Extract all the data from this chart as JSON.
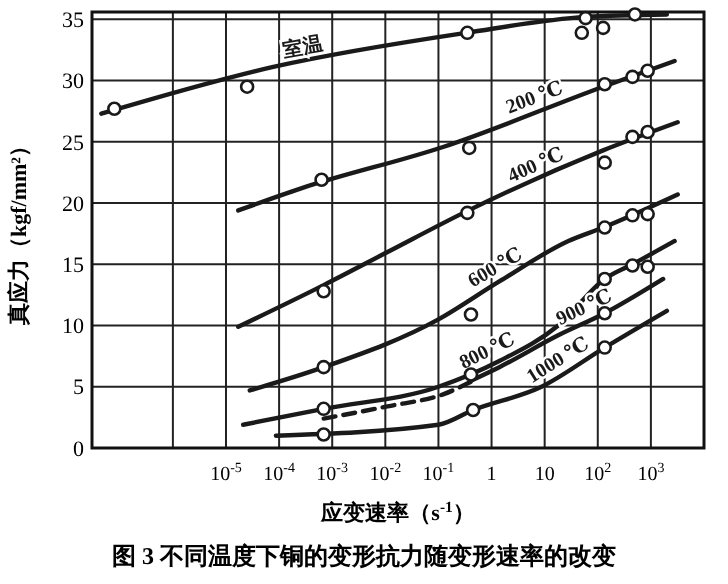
{
  "chart_data": {
    "type": "line",
    "xlabel": "应变速率（s$^{-1}$）",
    "ylabel": "真应力（kgf/mm²）",
    "annotations": [
      "图 3  不同温度下铜的变形抗力随变形速率的改变"
    ],
    "log": "x",
    "grid": true,
    "marker": "none",
    "xlim": [
      3e-08,
      10000
    ],
    "ylim": [
      0,
      35.6
    ],
    "xticks": [
      {
        "value": 1e-06,
        "label": null
      },
      {
        "value": 1e-05,
        "label": "10$^{-5}$"
      },
      {
        "value": 0.0001,
        "label": "10$^{-4}$"
      },
      {
        "value": 0.001,
        "label": "10$^{-3}$"
      },
      {
        "value": 0.01,
        "label": "10$^{-2}$"
      },
      {
        "value": 0.1,
        "label": "10$^{-1}$"
      },
      1,
      10,
      {
        "value": 100,
        "label": "10$^{2}$"
      },
      {
        "value": 1000,
        "label": "10$^{3}$"
      }
    ],
    "yticks": [
      0,
      5,
      10,
      15,
      20,
      25,
      30,
      35
    ],
    "series": [
      {
        "name": "室温",
        "color": "#1a1a1a",
        "x": [
          4.5e-08,
          7.4e-05,
          0.33,
          59,
          2000
        ],
        "values": [
          27.3,
          31.1,
          33.9,
          35.2,
          35.4
        ]
      },
      {
        "name": "200 ℃",
        "color": "#1a1a1a",
        "x": [
          1.7e-05,
          0.00026,
          0.126,
          126,
          2800
        ],
        "values": [
          19.4,
          21.2,
          24.6,
          29.5,
          31.6
        ]
      },
      {
        "name": "400 ℃",
        "color": "#1a1a1a",
        "x": [
          1.7e-05,
          0.00069,
          0.011,
          0.33,
          126,
          3200
        ],
        "values": [
          9.9,
          13.3,
          16.0,
          19.3,
          24.3,
          26.6
        ]
      },
      {
        "name": "600 ℃",
        "color": "#1a1a1a",
        "x": [
          2.8e-05,
          0.00069,
          0.1,
          1.4,
          28,
          126,
          3200
        ],
        "values": [
          4.7,
          6.6,
          10.5,
          13.6,
          16.9,
          18.0,
          20.7
        ]
      },
      {
        "name": "800 ℃",
        "color": "#1a1a1a",
        "x": [
          2.1e-05,
          0.00069,
          0.1,
          1.4,
          18,
          135,
          450,
          2800
        ],
        "values": [
          1.9,
          3.2,
          5.0,
          7.1,
          10.0,
          13.8,
          15.0,
          16.9
        ]
      },
      {
        "name": "900 ℃",
        "color": "#1a1a1a",
        "x": [
          0.41,
          1.4,
          18,
          135,
          1700
        ],
        "values": [
          5.5,
          6.6,
          9.2,
          11.0,
          13.8
        ]
      },
      {
        "color": "#1a1a1a",
        "line_style": "dashed",
        "x": [
          0.00069,
          0.011,
          0.126,
          0.41
        ],
        "values": [
          2.4,
          3.4,
          4.4,
          5.4
        ]
      },
      {
        "name": "1000 ℃",
        "color": "#1a1a1a",
        "x": [
          8.7e-05,
          0.1,
          0.45,
          8.7,
          135,
          2000
        ],
        "values": [
          1.0,
          1.9,
          3.1,
          5.0,
          8.2,
          11.2
        ]
      },
      {
        "type": "scatter",
        "marker": "circle",
        "color": "#1a1a1a",
        "x": [
          7.9e-08,
          2.5e-05,
          0.35,
          59,
          50,
          126,
          500,
          0.00063,
          0.38,
          135,
          450,
          870,
          0.00069,
          0.35,
          135,
          450,
          870,
          0.00069,
          0.41,
          135,
          450,
          870,
          0.00069,
          135,
          450,
          870,
          0.41,
          135,
          0.00069,
          0.45,
          135
        ],
        "values": [
          27.7,
          29.5,
          33.9,
          35.1,
          33.9,
          34.3,
          35.4,
          21.9,
          24.5,
          29.7,
          30.3,
          30.8,
          12.8,
          19.2,
          23.3,
          25.4,
          25.8,
          6.6,
          10.9,
          18.0,
          19.0,
          19.1,
          3.2,
          13.8,
          14.9,
          14.8,
          6.0,
          11.0,
          1.1,
          3.1,
          8.2
        ]
      }
    ]
  }
}
